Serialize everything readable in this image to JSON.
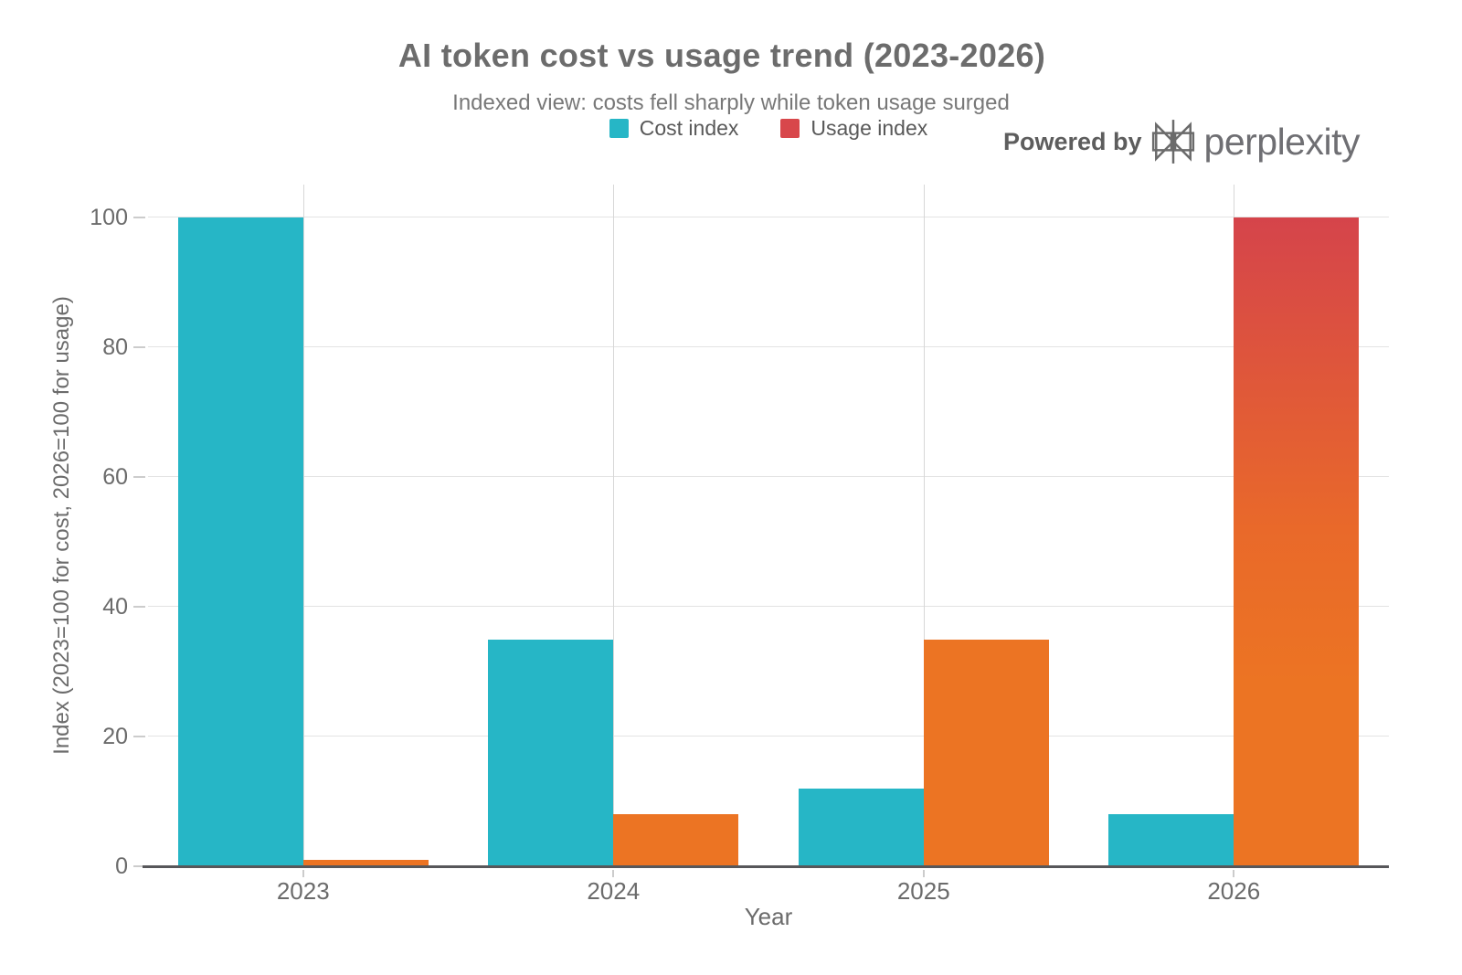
{
  "header": {
    "title": "AI token cost vs usage trend (2023-2026)",
    "subtitle": "Indexed view: costs fell sharply while token usage surged",
    "powered_by": "Powered by",
    "brand": "perplexity"
  },
  "legend": [
    {
      "label": "Cost index",
      "color": "#26b6c6"
    },
    {
      "label": "Usage index",
      "color": "#d8474b"
    }
  ],
  "chart_data": {
    "type": "bar",
    "title": "AI token cost vs usage trend (2023-2026)",
    "subtitle": "Indexed view: costs fell sharply while token usage surged",
    "categories": [
      "2023",
      "2024",
      "2025",
      "2026"
    ],
    "series": [
      {
        "name": "Cost index",
        "values": [
          100,
          35,
          12,
          8
        ],
        "color": "#26b6c6"
      },
      {
        "name": "Usage index",
        "values": [
          1,
          8,
          35,
          100
        ],
        "color": "#ec7423",
        "gradient_bar_index": 3,
        "gradient": {
          "top": "#d5444b",
          "mid": "#e9692a",
          "bottom": "#ec7423"
        }
      }
    ],
    "xlabel": "Year",
    "ylabel": "Index (2023=100 for cost, 2026=100 for usage)",
    "yticks": [
      0,
      20,
      40,
      60,
      80,
      100
    ],
    "ylim": [
      0,
      105
    ],
    "grid": true,
    "legend_position": "top-center",
    "colors": {
      "title": "#6c6c6c",
      "grid_line": "#e0e0e0",
      "axis_line": "#57575a",
      "tick_label": "#6b6b6b"
    }
  }
}
